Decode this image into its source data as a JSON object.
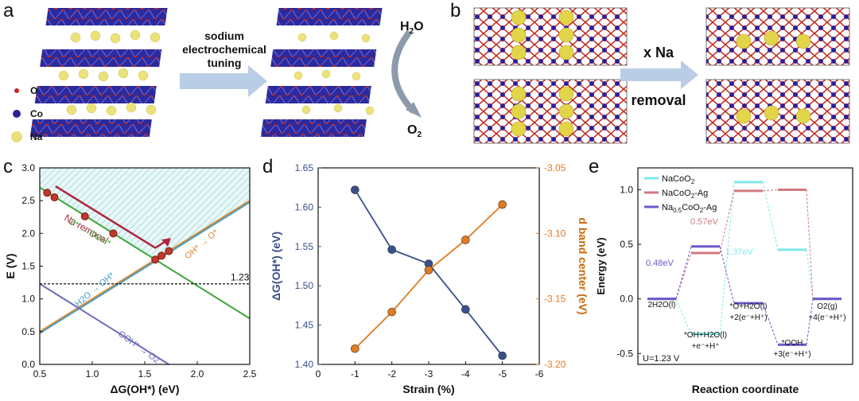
{
  "panel_labels": {
    "a": "a",
    "b": "b",
    "c": "c",
    "d": "d",
    "e": "e"
  },
  "panel_a": {
    "legend": [
      {
        "symbol": "O",
        "color": "#c0281f"
      },
      {
        "symbol": "Co",
        "color": "#2a1f9a"
      },
      {
        "symbol": "Na",
        "color": "#e8e078"
      }
    ],
    "arrow_text": [
      "sodium",
      "electrochemical",
      "tuning"
    ],
    "h2o_main": "H",
    "h2o_sub": "2",
    "h2o_tail": "O",
    "o2_main": "O",
    "o2_sub": "2"
  },
  "panel_b": {
    "arrow_text_top": "x Na",
    "arrow_text_bottom": "removal"
  },
  "chart_data": [
    {
      "id": "c",
      "type": "line",
      "xlabel": "ΔG(OH*) (eV)",
      "ylabel": "E (V)",
      "xlim": [
        0.5,
        2.5
      ],
      "ylim": [
        0.0,
        3.0
      ],
      "xticks": [
        "0.5",
        "1.0",
        "1.5",
        "2.0",
        "2.5"
      ],
      "yticks": [
        "0.0",
        "0.5",
        "1.0",
        "1.5",
        "2.0",
        "2.5",
        "3.0"
      ],
      "lines": [
        {
          "name": "O* → OOH*",
          "color": "#3fa63a",
          "x": [
            0.5,
            2.5
          ],
          "y": [
            2.7,
            0.7
          ]
        },
        {
          "name": "OH* → O*",
          "color": "#e08a2a",
          "x": [
            0.5,
            2.5
          ],
          "y": [
            0.5,
            2.5
          ]
        },
        {
          "name": "H2O → OH*",
          "color": "#4b9ec6",
          "x": [
            0.5,
            2.5
          ],
          "y": [
            0.5,
            2.5
          ]
        },
        {
          "name": "OOH* → O2",
          "color": "#6a6ab8",
          "x": [
            0.5,
            1.73
          ],
          "y": [
            1.23,
            0.0
          ]
        }
      ],
      "hline": {
        "y": 1.23,
        "label": "1.23"
      },
      "line_labels": {
        "na_removal": "Na removal",
        "o_to_ooh": "O* → OOH*",
        "oh_to_o": "OH* → O*",
        "h2o_to_oh": "H2O → OH*",
        "ooh_to_o2": "OOH* → O2"
      },
      "points": [
        {
          "x": 0.57,
          "y": 2.62
        },
        {
          "x": 0.64,
          "y": 2.55
        },
        {
          "x": 0.93,
          "y": 2.26
        },
        {
          "x": 1.2,
          "y": 2.0
        },
        {
          "x": 1.6,
          "y": 1.6
        },
        {
          "x": 1.66,
          "y": 1.66
        },
        {
          "x": 1.73,
          "y": 1.73
        }
      ],
      "na_arrow": {
        "x": [
          0.65,
          1.6
        ],
        "y": [
          2.72,
          1.78
        ],
        "to": [
          1.75,
          1.93
        ]
      },
      "shaded_region": "hatched cyan above volcano"
    },
    {
      "id": "d",
      "type": "line",
      "xlabel": "Strain (%)",
      "ylabel": "ΔG(OH*) (eV)",
      "ylabel_right": "d band center (eV)",
      "categories": [
        "-1",
        "-2",
        "-3",
        "-4",
        "-5"
      ],
      "x_all_ticks": [
        "0",
        "-1",
        "-2",
        "-3",
        "-4",
        "-5",
        "-6"
      ],
      "xlim": [
        0,
        -6
      ],
      "ylim": [
        1.4,
        1.65
      ],
      "yticks": [
        "1.40",
        "1.45",
        "1.50",
        "1.55",
        "1.60",
        "1.65"
      ],
      "ylim_right": [
        -3.2,
        -3.05
      ],
      "yticks_right": [
        "-3.20",
        "-3.15",
        "-3.10",
        "-3.05"
      ],
      "series": [
        {
          "axis": "left",
          "color": "#3a508a",
          "x": [
            -1,
            -2,
            -3,
            -4,
            -5
          ],
          "values": [
            1.622,
            1.546,
            1.528,
            1.47,
            1.411
          ]
        },
        {
          "axis": "right",
          "color": "#e07b1f",
          "x": [
            -1,
            -2,
            -3,
            -4,
            -5
          ],
          "values": [
            -3.188,
            -3.16,
            -3.128,
            -3.105,
            -3.078
          ]
        }
      ]
    },
    {
      "id": "e",
      "type": "line",
      "xlabel": "Reaction coordinate",
      "ylabel": "Energy (eV)",
      "ylim": [
        -0.6,
        1.2
      ],
      "yticks": [
        "-0.5",
        "0.0",
        "0.5",
        "1.0"
      ],
      "series": [
        {
          "name": "NaCoO2",
          "color": "#7fe8e8",
          "values": [
            0.0,
            -0.32,
            1.07,
            0.45,
            0.0
          ]
        },
        {
          "name": "NaCoO2-Ag",
          "color": "#d07a80",
          "values": [
            0.0,
            0.42,
            0.99,
            1.0,
            0.0
          ]
        },
        {
          "name": "Na0.5CoO2-Ag",
          "color": "#6a5acd",
          "values": [
            0.0,
            0.48,
            -0.04,
            -0.42,
            0.0
          ]
        }
      ],
      "legend_text": [
        {
          "main": "NaCoO",
          "sub": "2",
          "tail": ""
        },
        {
          "main": "NaCoO",
          "sub": "2",
          "tail": "-Ag"
        },
        {
          "main": "Na",
          "sub": "0.5",
          "tail": "CoO",
          "sub2": "2",
          "tail2": "-Ag"
        }
      ],
      "annotations": {
        "a1": "0.48eV",
        "a2": "0.57eV",
        "a3": "1.37eV",
        "u": "U=1.23 V"
      },
      "steps": [
        {
          "l1": "2H2O(l)",
          "l2": ""
        },
        {
          "l1": "*OH+H2O(l)",
          "l2": "+e⁻+H⁺"
        },
        {
          "l1": "*O+H2O(l)",
          "l2": "+2(e⁻+H⁺)"
        },
        {
          "l1": "*OOH",
          "l2": "+3(e⁻+H⁺)"
        },
        {
          "l1": "O2(g)",
          "l2": "+4(e⁻+H⁺)"
        }
      ]
    }
  ]
}
